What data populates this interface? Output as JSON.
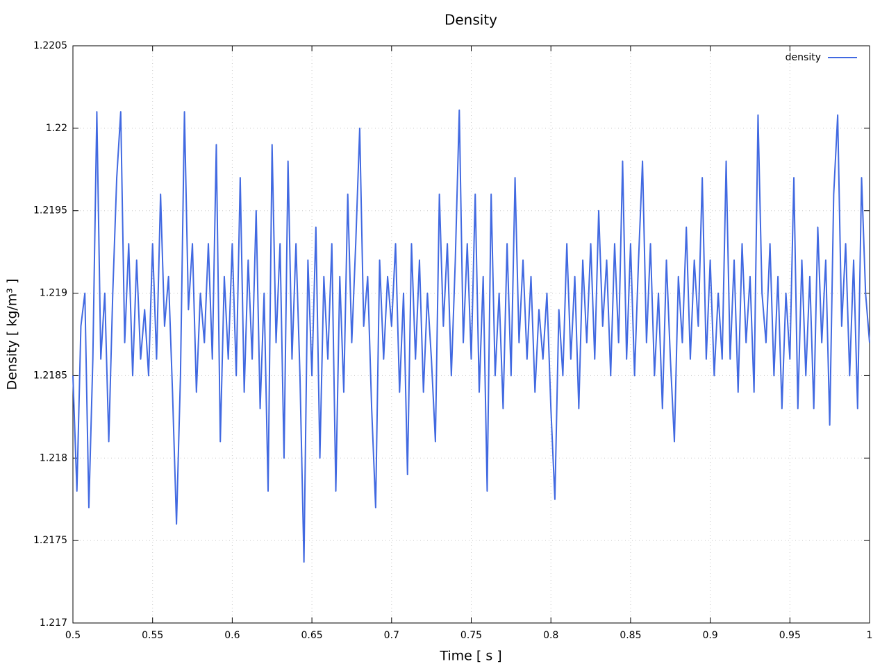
{
  "chart_data": {
    "type": "line",
    "title": "Density",
    "x_label": "Time [ s ]",
    "y_label": "Density [ kg/m³ ]",
    "xlim": [
      0.5,
      1
    ],
    "ylim": [
      1.217,
      1.2205
    ],
    "xticks": [
      0.5,
      0.55,
      0.6,
      0.65,
      0.7,
      0.75,
      0.8,
      0.85,
      0.9,
      0.95,
      1
    ],
    "yticks": [
      1.217,
      1.2175,
      1.218,
      1.2185,
      1.219,
      1.2195,
      1.22,
      1.2205
    ],
    "grid": true,
    "legend": "upper right",
    "x": [
      0.5,
      0.5025,
      0.505,
      0.5075,
      0.51,
      0.5125,
      0.515,
      0.5175,
      0.52,
      0.5225,
      0.525,
      0.5275,
      0.53,
      0.5325,
      0.535,
      0.5375,
      0.54,
      0.5425,
      0.545,
      0.5475,
      0.55,
      0.5525,
      0.555,
      0.5575,
      0.56,
      0.5625,
      0.565,
      0.5675,
      0.57,
      0.5725,
      0.575,
      0.5775,
      0.58,
      0.5825,
      0.585,
      0.5875,
      0.59,
      0.5925,
      0.595,
      0.5975,
      0.6,
      0.6025,
      0.605,
      0.6075,
      0.61,
      0.6125,
      0.615,
      0.6175,
      0.62,
      0.6225,
      0.625,
      0.6275,
      0.63,
      0.6325,
      0.635,
      0.6375,
      0.64,
      0.6425,
      0.645,
      0.6475,
      0.65,
      0.6525,
      0.655,
      0.6575,
      0.66,
      0.6625,
      0.665,
      0.6675,
      0.67,
      0.6725,
      0.675,
      0.6775,
      0.68,
      0.6825,
      0.685,
      0.6875,
      0.69,
      0.6925,
      0.695,
      0.6975,
      0.7,
      0.7025,
      0.705,
      0.7075,
      0.71,
      0.7125,
      0.715,
      0.7175,
      0.72,
      0.7225,
      0.725,
      0.7275,
      0.73,
      0.7325,
      0.735,
      0.7375,
      0.74,
      0.7425,
      0.745,
      0.7475,
      0.75,
      0.7525,
      0.755,
      0.7575,
      0.76,
      0.7625,
      0.765,
      0.7675,
      0.77,
      0.7725,
      0.775,
      0.7775,
      0.78,
      0.7825,
      0.785,
      0.7875,
      0.79,
      0.7925,
      0.795,
      0.7975,
      0.8,
      0.8025,
      0.805,
      0.8075,
      0.81,
      0.8125,
      0.815,
      0.8175,
      0.82,
      0.8225,
      0.825,
      0.8275,
      0.83,
      0.8325,
      0.835,
      0.8375,
      0.84,
      0.8425,
      0.845,
      0.8475,
      0.85,
      0.8525,
      0.855,
      0.8575,
      0.86,
      0.8625,
      0.865,
      0.8675,
      0.87,
      0.8725,
      0.875,
      0.8775,
      0.88,
      0.8825,
      0.885,
      0.8875,
      0.89,
      0.8925,
      0.895,
      0.8975,
      0.9,
      0.9025,
      0.905,
      0.9075,
      0.91,
      0.9125,
      0.915,
      0.9175,
      0.92,
      0.9225,
      0.925,
      0.9275,
      0.93,
      0.9325,
      0.935,
      0.9375,
      0.94,
      0.9425,
      0.945,
      0.9475,
      0.95,
      0.9525,
      0.955,
      0.9575,
      0.96,
      0.9625,
      0.965,
      0.9675,
      0.97,
      0.9725,
      0.975,
      0.9775,
      0.98,
      0.9825,
      0.985,
      0.9875,
      0.99,
      0.9925,
      0.995,
      0.9975,
      1
    ],
    "series": [
      {
        "name": "density",
        "color": "#4169e1",
        "values": [
          1.2185,
          1.2178,
          1.2188,
          1.219,
          1.2177,
          1.2186,
          1.2201,
          1.2186,
          1.219,
          1.2181,
          1.219,
          1.2197,
          1.2201,
          1.2187,
          1.2193,
          1.2185,
          1.2192,
          1.2186,
          1.2189,
          1.2185,
          1.2193,
          1.2186,
          1.2196,
          1.2188,
          1.2191,
          1.2184,
          1.2176,
          1.2185,
          1.2201,
          1.2189,
          1.2193,
          1.2184,
          1.219,
          1.2187,
          1.2193,
          1.2186,
          1.2199,
          1.2181,
          1.2191,
          1.2186,
          1.2193,
          1.2185,
          1.2197,
          1.2184,
          1.2192,
          1.2186,
          1.2195,
          1.2183,
          1.219,
          1.2178,
          1.2199,
          1.2187,
          1.2193,
          1.218,
          1.2198,
          1.2186,
          1.2193,
          1.2185,
          1.21737,
          1.2192,
          1.2185,
          1.2194,
          1.218,
          1.2191,
          1.2186,
          1.2193,
          1.2178,
          1.2191,
          1.2184,
          1.2196,
          1.2187,
          1.2193,
          1.22,
          1.2188,
          1.2191,
          1.2183,
          1.2177,
          1.2192,
          1.2186,
          1.2191,
          1.2188,
          1.2193,
          1.2184,
          1.219,
          1.2179,
          1.2193,
          1.2186,
          1.2192,
          1.2184,
          1.219,
          1.2186,
          1.2181,
          1.2196,
          1.2188,
          1.2193,
          1.2185,
          1.2192,
          1.22011,
          1.2187,
          1.2193,
          1.2186,
          1.2196,
          1.2184,
          1.2191,
          1.2178,
          1.2196,
          1.2185,
          1.219,
          1.2183,
          1.2193,
          1.2185,
          1.2197,
          1.2187,
          1.2192,
          1.2186,
          1.2191,
          1.2184,
          1.2189,
          1.2186,
          1.219,
          1.2183,
          1.21775,
          1.2189,
          1.2185,
          1.2193,
          1.2186,
          1.2191,
          1.2183,
          1.2192,
          1.2187,
          1.2193,
          1.2186,
          1.2195,
          1.2188,
          1.2192,
          1.2185,
          1.2193,
          1.2187,
          1.2198,
          1.2186,
          1.2193,
          1.2185,
          1.2192,
          1.2198,
          1.2187,
          1.2193,
          1.2185,
          1.219,
          1.2183,
          1.2192,
          1.2186,
          1.2181,
          1.2191,
          1.2187,
          1.2194,
          1.2186,
          1.2192,
          1.2188,
          1.2197,
          1.2186,
          1.2192,
          1.2185,
          1.219,
          1.2186,
          1.2198,
          1.2186,
          1.2192,
          1.2184,
          1.2193,
          1.2187,
          1.2191,
          1.2184,
          1.22008,
          1.219,
          1.2187,
          1.2193,
          1.2185,
          1.2191,
          1.2183,
          1.219,
          1.2186,
          1.2197,
          1.2183,
          1.2192,
          1.2185,
          1.2191,
          1.2183,
          1.2194,
          1.2187,
          1.2192,
          1.2182,
          1.2196,
          1.22008,
          1.2188,
          1.2193,
          1.2185,
          1.2192,
          1.2183,
          1.2197,
          1.219,
          1.2187
        ]
      }
    ]
  }
}
